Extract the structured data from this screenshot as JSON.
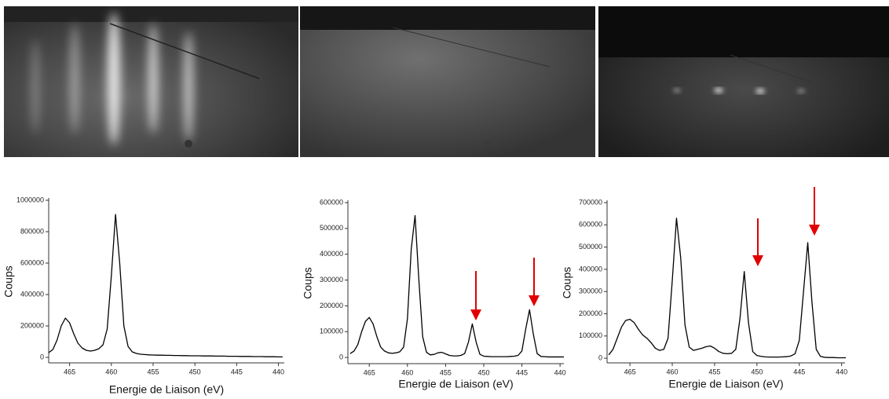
{
  "chart_data": [
    {
      "type": "line",
      "x_label": "Energie de Liaison (eV)",
      "y_label": "Coups",
      "x": [
        467.5,
        467,
        466.5,
        466,
        465.5,
        465,
        464.5,
        464,
        463.5,
        463,
        462.5,
        462,
        461.5,
        461,
        460.5,
        460,
        459.5,
        459,
        458.5,
        458,
        457.5,
        457,
        456.5,
        456,
        455.5,
        455,
        454.5,
        454,
        453.5,
        453,
        452.5,
        452,
        451.5,
        451,
        450.5,
        450,
        449.5,
        449,
        448.5,
        448,
        447.5,
        447,
        446.5,
        446,
        445.5,
        445,
        444.5,
        444,
        443.5,
        443,
        442.5,
        442,
        441.5,
        441,
        440.5,
        440,
        439.5
      ],
      "series": [
        {
          "color": "#000000",
          "values": [
            30000,
            50000,
            110000,
            200000,
            250000,
            220000,
            150000,
            90000,
            60000,
            45000,
            40000,
            45000,
            55000,
            80000,
            180000,
            520000,
            910000,
            600000,
            200000,
            70000,
            35000,
            25000,
            20000,
            18000,
            16000,
            15000,
            14000,
            14000,
            13000,
            13000,
            12000,
            12000,
            11000,
            11000,
            10000,
            10000,
            10000,
            9000,
            9000,
            9000,
            8000,
            8000,
            8000,
            7000,
            7000,
            7000,
            6000,
            6000,
            6000,
            5000,
            5000,
            5000,
            4000,
            4000,
            4000,
            3000,
            3000
          ]
        }
      ],
      "xlim": [
        467.5,
        439.3
      ],
      "ylim": [
        -35000,
        1000000
      ],
      "xticks": [
        465,
        460,
        455,
        450,
        445,
        440
      ],
      "yticks": [
        0,
        200000,
        400000,
        600000,
        800000,
        1000000
      ]
    },
    {
      "type": "line",
      "x_label": "Energie de Liaison (eV)",
      "y_label": "Coups",
      "x": [
        467.5,
        467,
        466.5,
        466,
        465.5,
        465,
        464.5,
        464,
        463.5,
        463,
        462.5,
        462,
        461.5,
        461,
        460.5,
        460,
        459.5,
        459,
        458.5,
        458,
        457.5,
        457,
        456.5,
        456,
        455.5,
        455,
        454.5,
        454,
        453.5,
        453,
        452.5,
        452,
        451.5,
        451,
        450.5,
        450,
        449.5,
        449,
        448.5,
        448,
        447.5,
        447,
        446.5,
        446,
        445.5,
        445,
        444.5,
        444,
        443.5,
        443,
        442.5,
        442,
        441.5,
        441,
        440.5,
        440,
        439.5
      ],
      "series": [
        {
          "color": "#000000",
          "values": [
            15000,
            25000,
            50000,
            100000,
            140000,
            155000,
            130000,
            80000,
            40000,
            25000,
            18000,
            16000,
            18000,
            22000,
            40000,
            150000,
            420000,
            550000,
            300000,
            80000,
            20000,
            10000,
            12000,
            18000,
            20000,
            14000,
            8000,
            6000,
            6000,
            8000,
            15000,
            60000,
            130000,
            60000,
            12000,
            5000,
            4000,
            3000,
            3000,
            3000,
            3000,
            3000,
            4000,
            5000,
            8000,
            25000,
            110000,
            185000,
            90000,
            15000,
            4000,
            3000,
            2000,
            2000,
            2000,
            2000,
            2000
          ]
        }
      ],
      "xlim": [
        467.8,
        439.5
      ],
      "ylim": [
        -24000,
        600000
      ],
      "xticks": [
        465,
        460,
        455,
        450,
        445,
        440
      ],
      "yticks": [
        0,
        100000,
        200000,
        300000,
        400000,
        500000,
        600000
      ]
    },
    {
      "type": "line",
      "x_label": "Energie de Liaison (eV)",
      "y_label": "Coups",
      "x": [
        467.5,
        467,
        466.5,
        466,
        465.5,
        465,
        464.5,
        464,
        463.5,
        463,
        462.5,
        462,
        461.5,
        461,
        460.5,
        460,
        459.5,
        459,
        458.5,
        458,
        457.5,
        457,
        456.5,
        456,
        455.5,
        455,
        454.5,
        454,
        453.5,
        453,
        452.5,
        452,
        451.5,
        451,
        450.5,
        450,
        449.5,
        449,
        448.5,
        448,
        447.5,
        447,
        446.5,
        446,
        445.5,
        445,
        444.5,
        444,
        443.5,
        443,
        442.5,
        442,
        441.5,
        441,
        440.5,
        440,
        439.5
      ],
      "series": [
        {
          "color": "#000000",
          "values": [
            15000,
            40000,
            90000,
            140000,
            170000,
            175000,
            160000,
            130000,
            105000,
            90000,
            70000,
            45000,
            35000,
            40000,
            90000,
            350000,
            630000,
            450000,
            150000,
            50000,
            35000,
            40000,
            45000,
            52000,
            55000,
            45000,
            30000,
            22000,
            20000,
            22000,
            40000,
            180000,
            390000,
            160000,
            30000,
            12000,
            8000,
            6000,
            5000,
            5000,
            5000,
            6000,
            7000,
            10000,
            20000,
            80000,
            300000,
            520000,
            250000,
            40000,
            8000,
            4000,
            3000,
            3000,
            2000,
            2000,
            2000
          ]
        }
      ],
      "xlim": [
        467.7,
        439.6
      ],
      "ylim": [
        -21000,
        700000
      ],
      "xticks": [
        465,
        460,
        455,
        450,
        445,
        440
      ],
      "yticks": [
        0,
        100000,
        200000,
        300000,
        400000,
        500000,
        600000,
        700000
      ]
    }
  ]
}
